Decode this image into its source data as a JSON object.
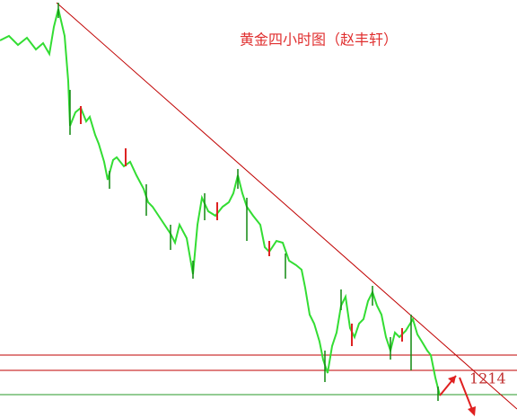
{
  "chart_data": {
    "type": "candlestick",
    "title": "黄金四小时图（赵丰轩）",
    "annotation": "1214"
  }
}
